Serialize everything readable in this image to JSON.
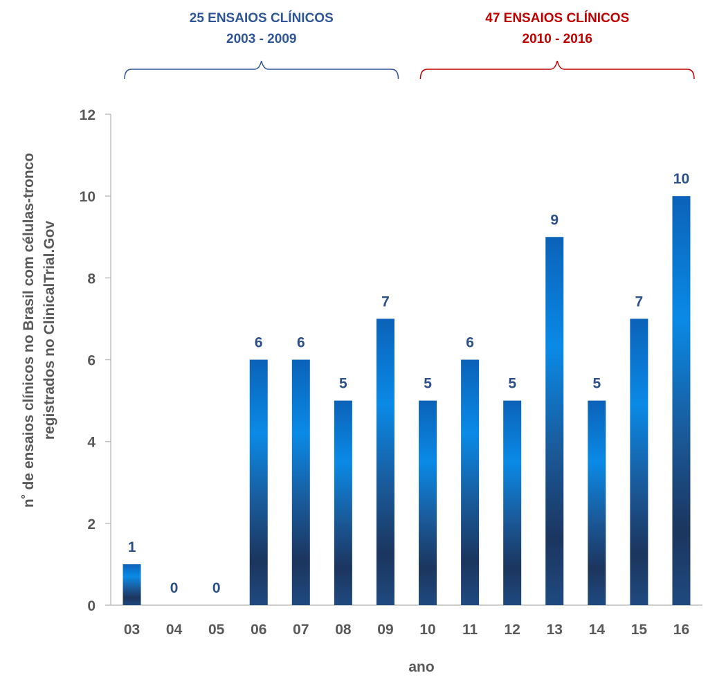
{
  "chart_data": {
    "type": "bar",
    "title": "",
    "xlabel": "ano",
    "ylabel": "n˚ de ensaios clínicos no Brasil com células-tronco",
    "ylabel2": "registrados no ClinicalTrial.Gov",
    "categories": [
      "03",
      "04",
      "05",
      "06",
      "07",
      "08",
      "09",
      "10",
      "11",
      "12",
      "13",
      "14",
      "15",
      "16"
    ],
    "values": [
      1,
      0,
      0,
      6,
      6,
      5,
      7,
      5,
      6,
      5,
      9,
      5,
      7,
      10
    ],
    "ylim": [
      0,
      12
    ],
    "yticks": [
      "0",
      "2",
      "4",
      "6",
      "8",
      "10",
      "12"
    ],
    "grid": false,
    "groups": [
      {
        "line1": "25 ENSAIOS CLÍNICOS",
        "line2": "2003 - 2009",
        "color": "#2e5597",
        "from": "03",
        "to": "09"
      },
      {
        "line1": "47 ENSAIOS CLÍNICOS",
        "line2": "2010 - 2016",
        "color": "#c00000",
        "from": "10",
        "to": "16"
      }
    ],
    "colors": {
      "bar_dark": "#1b355e",
      "bar_mid": "#0b62b8",
      "bar_light": "#0a8ae6",
      "value_label": "#2b4f86",
      "axis_text": "#595959",
      "axis_line": "#bfbfbf"
    }
  }
}
